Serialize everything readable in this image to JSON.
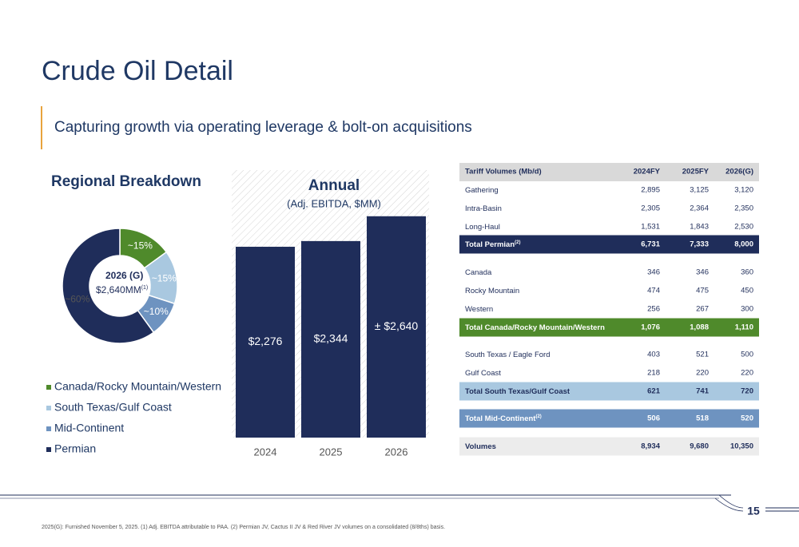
{
  "title": "Crude Oil Detail",
  "subtitle": "Capturing growth via operating leverage & bolt-on acquisitions",
  "chart_data": [
    {
      "type": "pie",
      "title": "Regional Breakdown",
      "center_title": "2026 (G)",
      "center_value": "$2,640MM",
      "center_note": "(1)",
      "series": [
        {
          "name": "Canada/Rocky Mountain/Western",
          "color": "#4f8a2b",
          "values": [
            15
          ],
          "value_labels": [
            "~15%"
          ]
        },
        {
          "name": "South Texas/Gulf Coast",
          "color": "#a9c8e0",
          "values": [
            15
          ],
          "value_labels": [
            "~15%"
          ]
        },
        {
          "name": "Mid-Continent",
          "color": "#6e93c0",
          "values": [
            10
          ],
          "value_labels": [
            "~10%"
          ]
        },
        {
          "name": "Permian",
          "color": "#1f2d5a",
          "values": [
            60
          ],
          "value_labels": [
            "~60%"
          ]
        }
      ]
    },
    {
      "type": "bar",
      "title": "Annual",
      "subtitle": "(Adj. EBITDA, $MM)",
      "categories": [
        "2024",
        "2025",
        "2026"
      ],
      "values": [
        2276,
        2344,
        2640
      ],
      "value_labels": [
        "$2,276",
        "$2,344",
        "± $2,640"
      ],
      "color": "#1f2d5a"
    }
  ],
  "table": {
    "header": [
      "Tariff Volumes (Mb/d)",
      "2024FY",
      "2025FY",
      "2026(G)"
    ],
    "rows": [
      {
        "label": "Gathering",
        "values": [
          "2,895",
          "3,125",
          "3,120"
        ]
      },
      {
        "label": "Intra-Basin",
        "values": [
          "2,305",
          "2,364",
          "2,350"
        ]
      },
      {
        "label": "Long-Haul",
        "values": [
          "1,531",
          "1,843",
          "2,530"
        ]
      },
      {
        "label": "Total Permian",
        "sup": "(2)",
        "values": [
          "6,731",
          "7,333",
          "8,000"
        ],
        "fill": "#1f2d5a",
        "text_color": "#ffffff"
      },
      {
        "label": "Canada",
        "values": [
          "346",
          "346",
          "360"
        ]
      },
      {
        "label": "Rocky Mountain",
        "values": [
          "474",
          "475",
          "450"
        ]
      },
      {
        "label": "Western",
        "values": [
          "256",
          "267",
          "300"
        ]
      },
      {
        "label": "Total Canada/Rocky Mountain/Western",
        "values": [
          "1,076",
          "1,088",
          "1,110"
        ],
        "fill": "#4f8a2b",
        "text_color": "#ffffff"
      },
      {
        "label": "South Texas / Eagle Ford",
        "values": [
          "403",
          "521",
          "500"
        ]
      },
      {
        "label": "Gulf Coast",
        "values": [
          "218",
          "220",
          "220"
        ]
      },
      {
        "label": "Total South Texas/Gulf Coast",
        "values": [
          "621",
          "741",
          "720"
        ],
        "fill": "#a9c8e0",
        "text_color": "#1f2d5a"
      },
      {
        "label": "Total Mid-Continent",
        "sup": "(2)",
        "values": [
          "506",
          "518",
          "520"
        ],
        "fill": "#6e93c0",
        "text_color": "#ffffff"
      },
      {
        "label": "Volumes",
        "values": [
          "8,934",
          "9,680",
          "10,350"
        ],
        "fill": "#ececec",
        "text_color": "#1f2d5a"
      }
    ]
  },
  "page_number": "15",
  "footnote": "2025(G): Furnished November 5, 2025. (1) Adj. EBITDA attributable to PAA. (2) Permian JV, Cactus II JV & Red River JV volumes on a consolidated (8/8ths) basis."
}
